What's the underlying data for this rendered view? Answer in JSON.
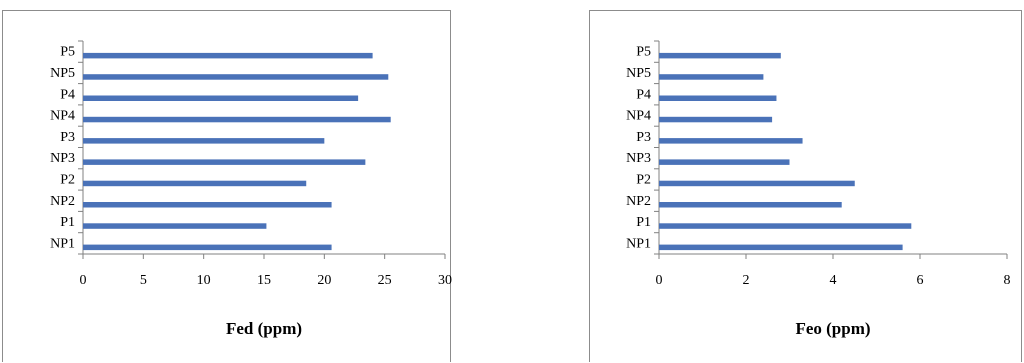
{
  "chart_data": [
    {
      "type": "bar",
      "orientation": "horizontal",
      "categories": [
        "NP1",
        "P1",
        "NP2",
        "P2",
        "NP3",
        "P3",
        "NP4",
        "P4",
        "NP5",
        "P5"
      ],
      "series": [
        {
          "values": [
            20.6,
            15.2,
            20.6,
            18.5,
            23.4,
            20.0,
            25.5,
            22.8,
            25.3,
            24.0
          ]
        }
      ],
      "xlabel": "Fed (ppm)",
      "ylabel": "",
      "title": "",
      "xlim": [
        0,
        30
      ],
      "xticks": [
        "0",
        "5",
        "10",
        "15",
        "20",
        "25",
        "30"
      ],
      "grid": false,
      "bar_color": "#4a72b8"
    },
    {
      "type": "bar",
      "orientation": "horizontal",
      "categories": [
        "NP1",
        "P1",
        "NP2",
        "P2",
        "NP3",
        "P3",
        "NP4",
        "P4",
        "NP5",
        "P5"
      ],
      "series": [
        {
          "values": [
            5.6,
            5.8,
            4.2,
            4.5,
            3.0,
            3.3,
            2.6,
            2.7,
            2.4,
            2.8
          ]
        }
      ],
      "xlabel": "Feo (ppm)",
      "ylabel": "",
      "title": "",
      "xlim": [
        0,
        8
      ],
      "xticks": [
        "0",
        "2",
        "4",
        "6",
        "8"
      ],
      "grid": false,
      "bar_color": "#4a72b8"
    }
  ]
}
